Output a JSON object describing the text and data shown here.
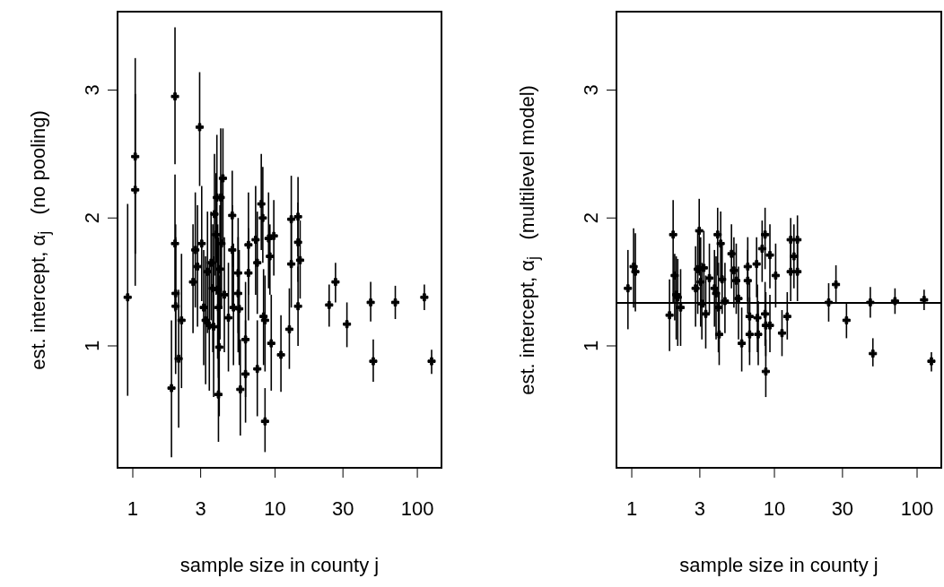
{
  "chart_data": [
    {
      "type": "scatter",
      "xlabel": "sample size in county j",
      "ylabel": "est. intercept, α$_{j}$   (no pooling)",
      "log": "x",
      "grid": false,
      "marker": "cross",
      "color": "#000000",
      "xlim": [
        0.77,
        150
      ],
      "xticks": [
        1,
        3,
        10,
        30,
        100
      ],
      "ylim": [
        0.04,
        3.62
      ],
      "yticks": [
        1,
        2,
        3
      ],
      "x": [
        0.92,
        1.04,
        1.04,
        1.87,
        1.98,
        1.98,
        2.0,
        2.0,
        2.1,
        2.2,
        2.65,
        2.75,
        2.85,
        2.95,
        3.05,
        3.15,
        3.25,
        3.35,
        3.45,
        3.55,
        3.65,
        3.7,
        3.75,
        3.85,
        3.9,
        3.95,
        4.0,
        4.0,
        4.05,
        4.1,
        4.15,
        4.2,
        4.3,
        4.4,
        4.7,
        5.0,
        5.0,
        5.1,
        5.5,
        5.5,
        5.6,
        5.7,
        6.2,
        6.2,
        6.5,
        6.5,
        7.3,
        7.5,
        7.5,
        8.0,
        8.2,
        8.3,
        8.5,
        8.5,
        9.0,
        9.2,
        9.4,
        9.8,
        11,
        12.6,
        13,
        13,
        14.5,
        14.5,
        15,
        14.5,
        24,
        26.6,
        32,
        47,
        49,
        70,
        112,
        126
      ],
      "values": [
        1.38,
        2.48,
        2.22,
        0.67,
        2.95,
        1.8,
        1.41,
        1.31,
        0.9,
        1.2,
        1.5,
        1.75,
        1.62,
        2.71,
        1.8,
        1.3,
        1.2,
        1.58,
        1.16,
        1.65,
        1.45,
        1.15,
        2.03,
        1.87,
        2.16,
        1.44,
        0.62,
        1.3,
        0.99,
        1.6,
        2.16,
        1.8,
        2.31,
        1.4,
        1.22,
        2.02,
        1.75,
        1.3,
        1.57,
        1.41,
        1.29,
        0.66,
        1.05,
        0.78,
        1.79,
        1.57,
        1.83,
        1.65,
        0.82,
        2.11,
        2.0,
        1.23,
        1.2,
        0.41,
        1.84,
        1.7,
        1.02,
        1.86,
        0.93,
        1.13,
        1.99,
        1.64,
        2.01,
        1.81,
        1.67,
        1.31,
        1.32,
        1.5,
        1.17,
        1.34,
        0.88,
        1.34,
        1.38,
        0.88
      ],
      "errors": [
        [
          0.61,
          2.11
        ],
        [
          1.72,
          3.25
        ],
        [
          1.47,
          2.97
        ],
        [
          0.13,
          1.2
        ],
        [
          2.42,
          3.49
        ],
        [
          1.27,
          2.34
        ],
        [
          0.87,
          1.95
        ],
        [
          0.78,
          1.85
        ],
        [
          0.36,
          1.44
        ],
        [
          0.67,
          1.72
        ],
        [
          1.1,
          1.95
        ],
        [
          1.3,
          2.2
        ],
        [
          1.15,
          2.1
        ],
        [
          2.25,
          3.14
        ],
        [
          1.35,
          2.25
        ],
        [
          0.85,
          1.75
        ],
        [
          0.7,
          1.7
        ],
        [
          1.1,
          2.05
        ],
        [
          0.65,
          1.65
        ],
        [
          1.2,
          2.05
        ],
        [
          0.95,
          1.95
        ],
        [
          0.6,
          1.7
        ],
        [
          1.55,
          2.5
        ],
        [
          1.4,
          2.35
        ],
        [
          1.65,
          2.65
        ],
        [
          0.9,
          1.95
        ],
        [
          0.25,
          1.1
        ],
        [
          0.75,
          1.85
        ],
        [
          0.45,
          1.55
        ],
        [
          1.05,
          2.1
        ],
        [
          1.7,
          2.7
        ],
        [
          1.3,
          2.3
        ],
        [
          1.8,
          2.7
        ],
        [
          0.95,
          1.85
        ],
        [
          0.8,
          1.65
        ],
        [
          1.62,
          2.37
        ],
        [
          1.3,
          2.1
        ],
        [
          0.85,
          1.8
        ],
        [
          1.1,
          2.0
        ],
        [
          0.95,
          1.85
        ],
        [
          0.85,
          1.75
        ],
        [
          0.3,
          1.05
        ],
        [
          0.6,
          1.5
        ],
        [
          0.4,
          1.2
        ],
        [
          1.4,
          2.2
        ],
        [
          1.2,
          1.92
        ],
        [
          1.4,
          2.25
        ],
        [
          1.25,
          2.05
        ],
        [
          0.45,
          1.2
        ],
        [
          1.75,
          2.5
        ],
        [
          1.65,
          2.4
        ],
        [
          0.85,
          1.6
        ],
        [
          0.8,
          1.55
        ],
        [
          0.17,
          0.67
        ],
        [
          1.45,
          2.2
        ],
        [
          1.4,
          1.95
        ],
        [
          0.65,
          1.4
        ],
        [
          1.55,
          2.14
        ],
        [
          0.64,
          1.24
        ],
        [
          0.82,
          1.45
        ],
        [
          1.65,
          2.33
        ],
        [
          1.3,
          1.98
        ],
        [
          1.7,
          2.32
        ],
        [
          1.5,
          2.12
        ],
        [
          1.37,
          1.98
        ],
        [
          1.0,
          1.62
        ],
        [
          1.15,
          1.48
        ],
        [
          1.34,
          1.65
        ],
        [
          0.99,
          1.34
        ],
        [
          1.19,
          1.5
        ],
        [
          0.72,
          1.05
        ],
        [
          1.21,
          1.47
        ],
        [
          1.28,
          1.48
        ],
        [
          0.78,
          0.97
        ]
      ]
    },
    {
      "type": "scatter",
      "xlabel": "sample size in county j",
      "ylabel": "est. intercept, α$_{j}$   (multilevel model)",
      "log": "x",
      "grid": false,
      "marker": "cross",
      "color": "#000000",
      "xlim": [
        0.77,
        150
      ],
      "xticks": [
        1,
        3,
        10,
        30,
        100
      ],
      "ylim": [
        0.04,
        3.62
      ],
      "yticks": [
        1,
        2,
        3
      ],
      "ref_lines": [
        {
          "axis": "y",
          "value": 1.336,
          "color": "#000000",
          "line_style": "solid"
        }
      ],
      "x": [
        0.94,
        1.03,
        1.06,
        1.84,
        1.95,
        2.0,
        2.05,
        2.1,
        2.2,
        2.8,
        2.9,
        2.97,
        3.04,
        3.1,
        3.2,
        3.3,
        3.5,
        3.8,
        3.9,
        4.0,
        4.05,
        4.1,
        4.2,
        4.3,
        4.5,
        5.0,
        5.2,
        5.4,
        5.6,
        5.9,
        6.5,
        6.5,
        6.7,
        6.7,
        7.5,
        7.6,
        7.7,
        8.2,
        8.6,
        8.6,
        8.7,
        8.7,
        9.3,
        9.3,
        10.2,
        11.3,
        12.3,
        13.0,
        13.0,
        13.7,
        14.5,
        14.5,
        24,
        27,
        32,
        47,
        49,
        70,
        112,
        126
      ],
      "values": [
        1.45,
        1.62,
        1.58,
        1.24,
        1.87,
        1.55,
        1.4,
        1.38,
        1.3,
        1.45,
        1.6,
        1.9,
        1.5,
        1.33,
        1.61,
        1.25,
        1.53,
        1.45,
        1.41,
        1.87,
        1.3,
        1.09,
        1.8,
        1.52,
        1.35,
        1.72,
        1.59,
        1.51,
        1.37,
        1.02,
        1.62,
        1.51,
        1.23,
        1.09,
        1.64,
        1.22,
        1.09,
        1.76,
        1.87,
        1.25,
        1.16,
        0.8,
        1.71,
        1.16,
        1.55,
        1.1,
        1.23,
        1.83,
        1.58,
        1.7,
        1.83,
        1.58,
        1.34,
        1.48,
        1.2,
        1.34,
        0.94,
        1.35,
        1.36,
        0.88
      ],
      "errors": [
        [
          1.13,
          1.75
        ],
        [
          1.3,
          1.92
        ],
        [
          1.27,
          1.88
        ],
        [
          0.96,
          1.52
        ],
        [
          1.34,
          2.14
        ],
        [
          1.2,
          1.72
        ],
        [
          1.05,
          1.7
        ],
        [
          1.0,
          1.68
        ],
        [
          1.0,
          1.6
        ],
        [
          1.15,
          1.78
        ],
        [
          1.25,
          1.9
        ],
        [
          1.55,
          2.15
        ],
        [
          1.15,
          1.85
        ],
        [
          1.05,
          1.65
        ],
        [
          1.3,
          1.9
        ],
        [
          0.98,
          1.55
        ],
        [
          1.25,
          1.8
        ],
        [
          1.15,
          1.75
        ],
        [
          1.05,
          1.7
        ],
        [
          1.55,
          2.08
        ],
        [
          0.95,
          1.65
        ],
        [
          0.85,
          1.4
        ],
        [
          1.5,
          2.05
        ],
        [
          1.25,
          1.8
        ],
        [
          1.1,
          1.65
        ],
        [
          1.45,
          1.95
        ],
        [
          1.3,
          1.85
        ],
        [
          1.25,
          1.8
        ],
        [
          1.05,
          1.62
        ],
        [
          0.8,
          1.3
        ],
        [
          1.35,
          1.85
        ],
        [
          1.25,
          1.75
        ],
        [
          0.95,
          1.5
        ],
        [
          0.85,
          1.38
        ],
        [
          1.38,
          1.85
        ],
        [
          0.95,
          1.48
        ],
        [
          0.85,
          1.35
        ],
        [
          1.5,
          1.98
        ],
        [
          1.6,
          2.08
        ],
        [
          1.0,
          1.5
        ],
        [
          0.92,
          1.42
        ],
        [
          0.6,
          1.05
        ],
        [
          1.45,
          1.95
        ],
        [
          0.95,
          1.4
        ],
        [
          1.3,
          1.8
        ],
        [
          0.92,
          1.28
        ],
        [
          1.05,
          1.42
        ],
        [
          1.6,
          2.0
        ],
        [
          1.35,
          1.8
        ],
        [
          1.45,
          1.95
        ],
        [
          1.6,
          2.02
        ],
        [
          1.35,
          1.8
        ],
        [
          1.19,
          1.49
        ],
        [
          1.33,
          1.63
        ],
        [
          1.06,
          1.33
        ],
        [
          1.22,
          1.46
        ],
        [
          0.84,
          1.06
        ],
        [
          1.25,
          1.45
        ],
        [
          1.28,
          1.44
        ],
        [
          0.8,
          0.95
        ]
      ]
    }
  ]
}
